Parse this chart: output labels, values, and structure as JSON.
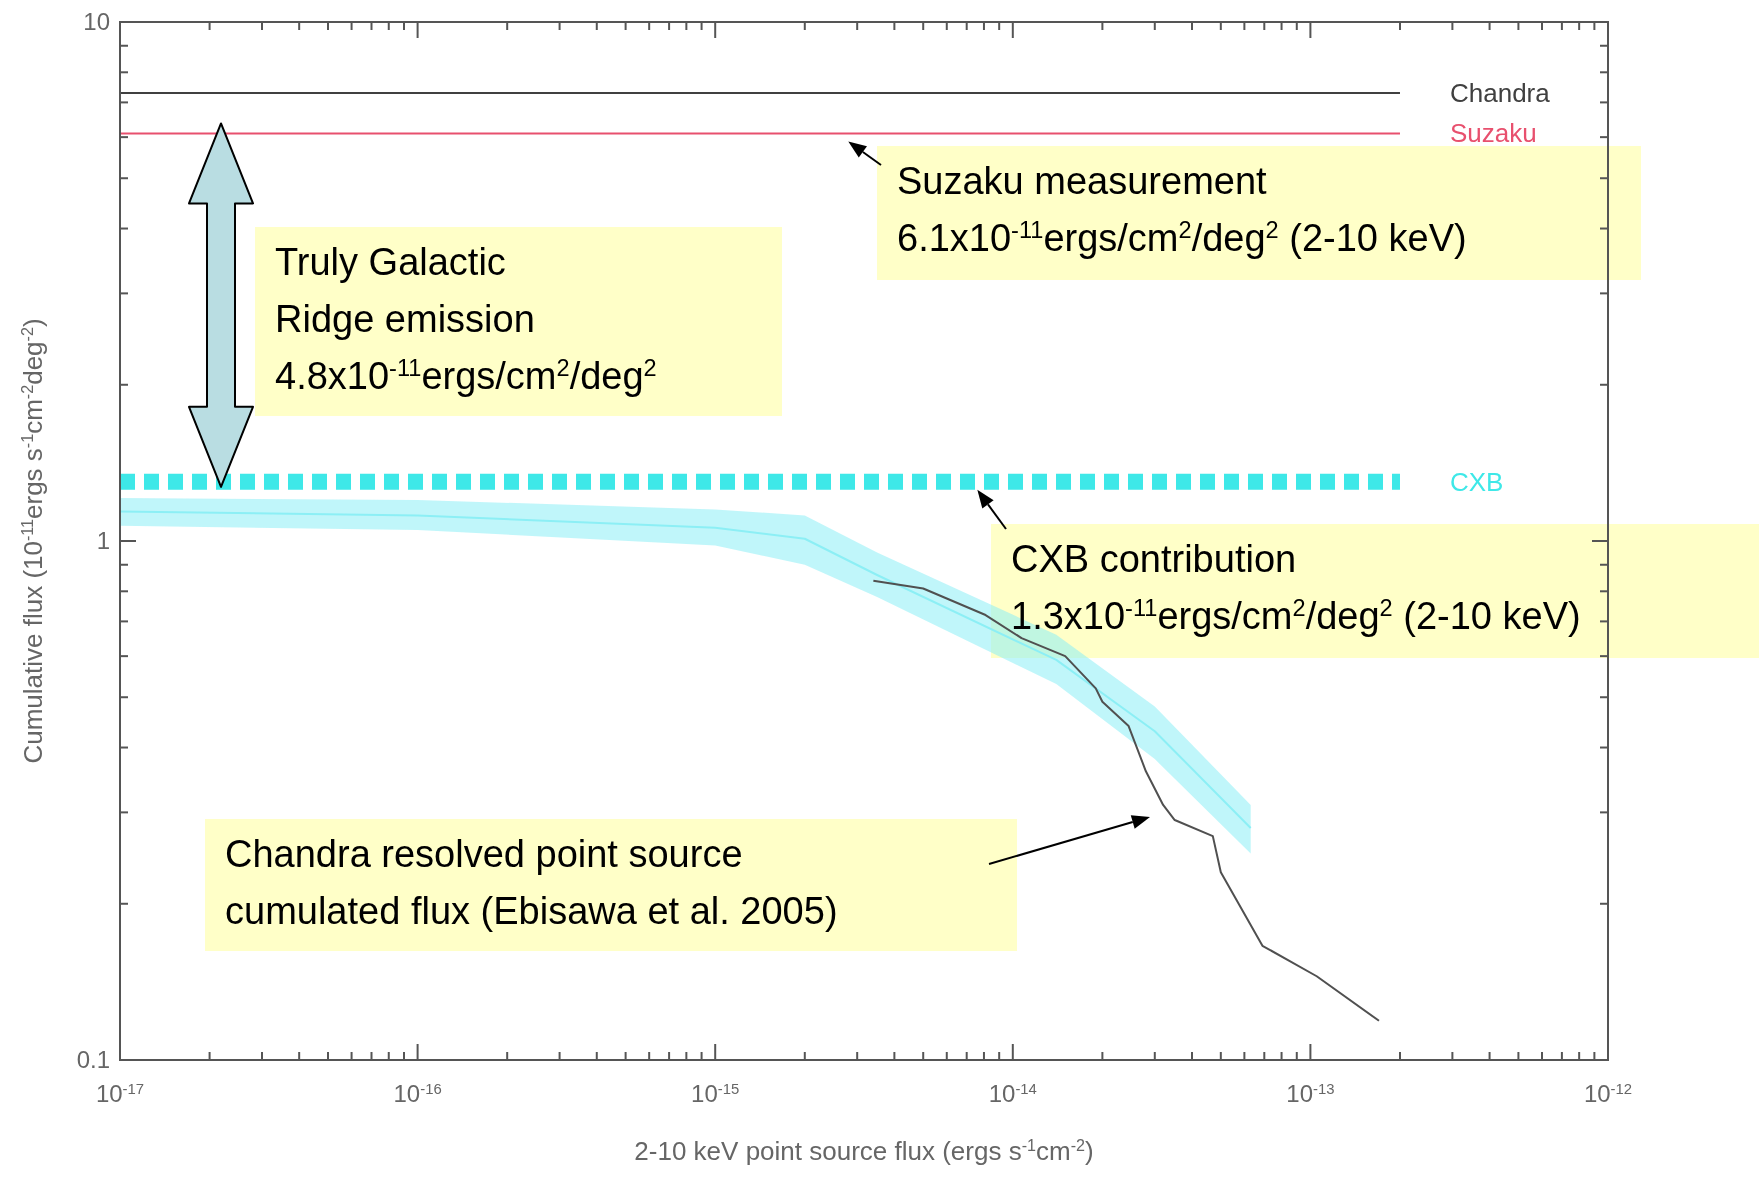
{
  "chart_data": {
    "type": "line",
    "xlabel": "2-10 keV point source flux (ergs s$^{-1}$cm$^{-2}$)",
    "ylabel": "Cumulative flux (10$^{-11}$ergs s$^{-1}$cm$^{-2}$deg$^{-2}$)",
    "log": "xy",
    "grid": false,
    "legend": false,
    "xlim": [
      1e-17,
      1e-12
    ],
    "ylim": [
      0.1,
      10
    ],
    "xticks": [
      {
        "value": 1e-17,
        "label": "10$^{-17}$"
      },
      {
        "value": 2e-17,
        "label": null
      },
      {
        "value": 3e-17,
        "label": null
      },
      {
        "value": 4e-17,
        "label": null
      },
      {
        "value": 5e-17,
        "label": null
      },
      {
        "value": 6e-17,
        "label": null
      },
      {
        "value": 7e-17,
        "label": null
      },
      {
        "value": 8e-17,
        "label": null
      },
      {
        "value": 9e-17,
        "label": null
      },
      {
        "value": 1e-16,
        "label": "10$^{-16}$"
      },
      {
        "value": 2e-16,
        "label": null
      },
      {
        "value": 3e-16,
        "label": null
      },
      {
        "value": 4e-16,
        "label": null
      },
      {
        "value": 5e-16,
        "label": null
      },
      {
        "value": 6e-16,
        "label": null
      },
      {
        "value": 7e-16,
        "label": null
      },
      {
        "value": 8e-16,
        "label": null
      },
      {
        "value": 9e-16,
        "label": null
      },
      {
        "value": 1e-15,
        "label": "10$^{-15}$"
      },
      {
        "value": 2e-15,
        "label": null
      },
      {
        "value": 3e-15,
        "label": null
      },
      {
        "value": 4e-15,
        "label": null
      },
      {
        "value": 5e-15,
        "label": null
      },
      {
        "value": 6e-15,
        "label": null
      },
      {
        "value": 7e-15,
        "label": null
      },
      {
        "value": 8e-15,
        "label": null
      },
      {
        "value": 9e-15,
        "label": null
      },
      {
        "value": 1e-14,
        "label": "10$^{-14}$"
      },
      {
        "value": 2e-14,
        "label": null
      },
      {
        "value": 3e-14,
        "label": null
      },
      {
        "value": 4e-14,
        "label": null
      },
      {
        "value": 5e-14,
        "label": null
      },
      {
        "value": 6e-14,
        "label": null
      },
      {
        "value": 7e-14,
        "label": null
      },
      {
        "value": 8e-14,
        "label": null
      },
      {
        "value": 9e-14,
        "label": null
      },
      {
        "value": 1e-13,
        "label": "10$^{-13}$"
      },
      {
        "value": 2e-13,
        "label": null
      },
      {
        "value": 3e-13,
        "label": null
      },
      {
        "value": 4e-13,
        "label": null
      },
      {
        "value": 5e-13,
        "label": null
      },
      {
        "value": 6e-13,
        "label": null
      },
      {
        "value": 7e-13,
        "label": null
      },
      {
        "value": 8e-13,
        "label": null
      },
      {
        "value": 9e-13,
        "label": null
      },
      {
        "value": 1e-12,
        "label": "10$^{-12}$"
      }
    ],
    "yticks": [
      0.1,
      {
        "value": 0.2,
        "label": null
      },
      {
        "value": 0.3,
        "label": null
      },
      {
        "value": 0.4,
        "label": null
      },
      {
        "value": 0.5,
        "label": null
      },
      {
        "value": 0.6,
        "label": null
      },
      {
        "value": 0.7,
        "label": null
      },
      {
        "value": 0.8,
        "label": null
      },
      {
        "value": 0.9,
        "label": null
      },
      1,
      {
        "value": 2,
        "label": null
      },
      {
        "value": 3,
        "label": null
      },
      {
        "value": 4,
        "label": null
      },
      {
        "value": 5,
        "label": null
      },
      {
        "value": 6,
        "label": null
      },
      {
        "value": 7,
        "label": null
      },
      {
        "value": 8,
        "label": null
      },
      {
        "value": 9,
        "label": null
      },
      10
    ],
    "series": [
      {
        "color": "#8ceff5",
        "x": [
          1e-17,
          1e-16,
          1e-15,
          2e-15,
          3.5e-15,
          1.4e-14,
          3e-14,
          6.3e-14
        ],
        "values": [
          1.14,
          1.12,
          1.06,
          1.01,
          0.86,
          0.59,
          0.43,
          0.28
        ],
        "lower": [
          1.07,
          1.05,
          0.98,
          0.9,
          0.78,
          0.53,
          0.38,
          0.25
        ],
        "upper": [
          1.21,
          1.2,
          1.15,
          1.12,
          0.95,
          0.66,
          0.48,
          0.31
        ]
      },
      {
        "name": "Chandra",
        "color": "#404040",
        "x": [
          1e-17,
          2e-13
        ],
        "values": [
          7.3,
          7.3
        ]
      },
      {
        "name": "Suzaku",
        "color": "#e8506e",
        "x": [
          1e-17,
          2e-13
        ],
        "values": [
          6.1,
          6.1
        ]
      },
      {
        "name": "CXB",
        "color": "#3ee8e8",
        "line_style": "dashed",
        "x": [
          1e-17,
          2e-13
        ],
        "values": [
          1.3,
          1.3
        ]
      },
      {
        "color": "#505050",
        "x": [
          3.4e-15,
          5e-15,
          8.1e-15,
          1.07e-14,
          1.5e-14,
          1.9e-14,
          2e-14,
          2.45e-14,
          2.8e-14,
          3.2e-14,
          3.5e-14,
          4.7e-14,
          5e-14,
          6.9e-14,
          1.05e-13,
          1.7e-13
        ],
        "values": [
          0.838,
          0.81,
          0.72,
          0.65,
          0.6,
          0.52,
          0.49,
          0.44,
          0.36,
          0.31,
          0.29,
          0.27,
          0.23,
          0.166,
          0.145,
          0.119
        ]
      }
    ],
    "annotations": [
      {
        "text": "Suzaku measurement\n6.1x10$^{-11}$ergs/cm$^{2}$/deg$^{2}$ (2-10 keV)",
        "x": 2.8e-15,
        "y": 6.1
      },
      "Truly Galactic\nRidge emission\n4.8x10$^{-11}$ergs/cm$^{2}$/deg$^{2}$",
      {
        "text": "CXB contribution\n1.3x10$^{-11}$ergs/cm$^{2}$/deg$^{2}$ (2-10 keV)",
        "x": 7.6e-15,
        "y": 1.3
      },
      "Chandra resolved point source\ncumulated flux (Ebisawa et al. 2005)"
    ]
  }
}
